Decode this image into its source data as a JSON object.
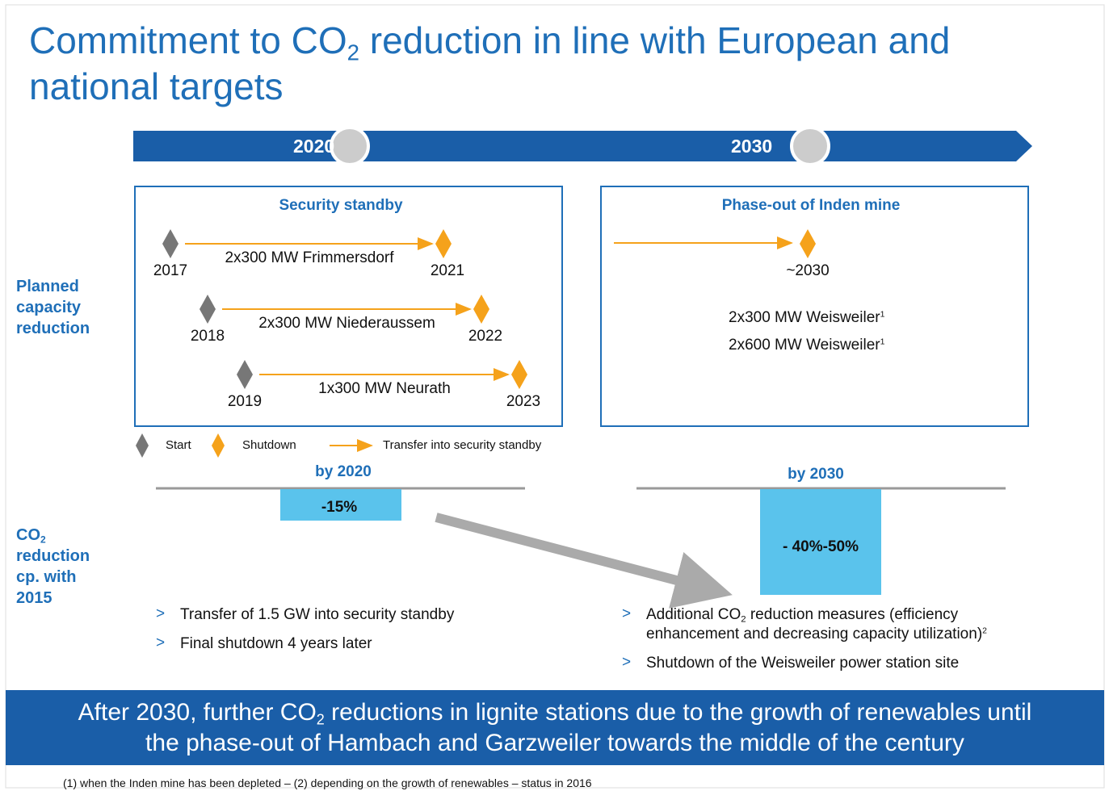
{
  "title": [
    "Commitment to CO",
    {
      "sub": "2"
    },
    " reduction in line with European and national targets"
  ],
  "timeline": [
    "2020",
    "2030"
  ],
  "row_labels": {
    "capacity": "Planned capacity reduction",
    "co2": [
      "CO",
      {
        "sub": "2"
      },
      " reduction cp. with 2015"
    ]
  },
  "security_standby": {
    "title": "Security standby",
    "items": [
      {
        "start": "2017",
        "label": "2x300 MW Frimmersdorf",
        "end": "2021"
      },
      {
        "start": "2018",
        "label": "2x300 MW Niederaussem",
        "end": "2022"
      },
      {
        "start": "2019",
        "label": "1x300 MW Neurath",
        "end": "2023"
      }
    ]
  },
  "phase_out": {
    "title": "Phase-out of Inden mine",
    "end": "~2030",
    "items": [
      [
        "2x300 MW Weisweiler",
        {
          "sup": "1"
        }
      ],
      [
        "2x600 MW Weisweiler",
        {
          "sup": "1"
        }
      ]
    ]
  },
  "legend": [
    "Start",
    "Shutdown",
    "Transfer into security standby"
  ],
  "reduction": [
    {
      "period": "by 2020",
      "value": "-15%",
      "bullets": [
        [
          "Transfer of 1.5 GW into security standby"
        ],
        [
          "Final shutdown 4 years later"
        ]
      ]
    },
    {
      "period": "by 2030",
      "value": "- 40%-50%",
      "bullets": [
        [
          "Additional CO",
          {
            "sub": "2"
          },
          " reduction measures (efficiency enhancement and decreasing capacity utilization)",
          {
            "sup": "2"
          }
        ],
        [
          "Shutdown of the Weisweiler power station site"
        ]
      ]
    }
  ],
  "banner": [
    "After 2030, further CO",
    {
      "sub": "2"
    },
    " reductions in lignite stations due to the growth of renewables until the phase-out of Hambach and Garzweiler towards the middle of the century"
  ],
  "footnote": "(1)   when the Inden mine has been depleted –  (2) depending on the growth of renewables –  status in 2016"
}
